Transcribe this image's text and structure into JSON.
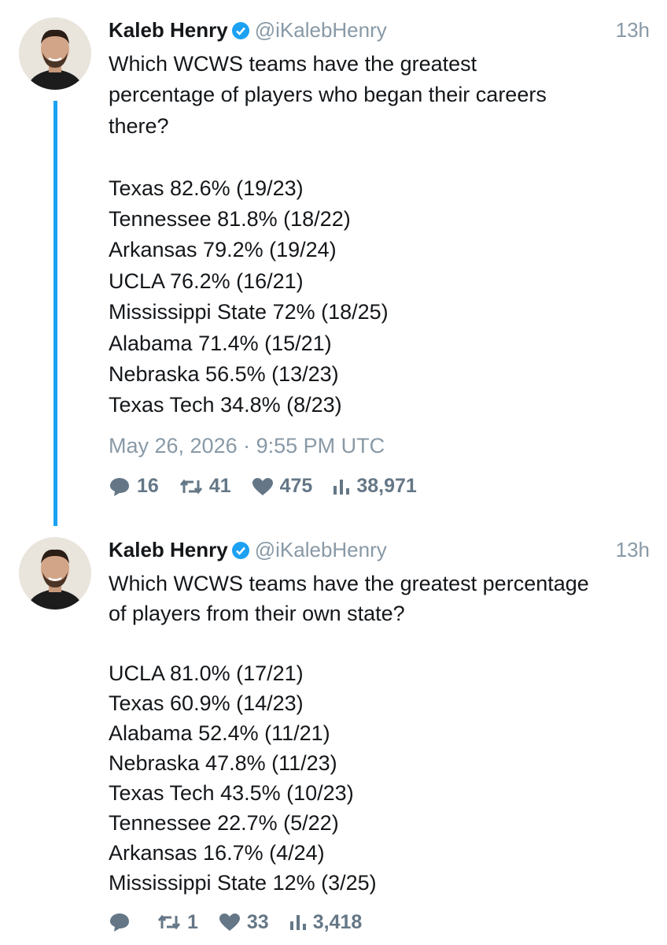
{
  "tweets": [
    {
      "name": "Kaleb Henry",
      "handle": "@iKalebHenry",
      "time": "13h",
      "question": [
        "Which WCWS teams have the greatest",
        "percentage of players who began their careers",
        "there?"
      ],
      "list": [
        "Texas 82.6% (19/23)",
        "Tennessee 81.8% (18/22)",
        "Arkansas 79.2% (19/24)",
        "UCLA 76.2% (16/21)",
        "Mississippi State 72% (18/25)",
        "Alabama 71.4% (15/21)",
        "Nebraska 56.5% (13/23)",
        "Texas Tech 34.8% (8/23)"
      ],
      "timestamp": "May 26, 2026 · 9:55 PM UTC",
      "stats": {
        "replies": "16",
        "retweets": "41",
        "likes": "475",
        "views": "38,971"
      }
    },
    {
      "name": "Kaleb Henry",
      "handle": "@iKalebHenry",
      "time": "13h",
      "question": [
        "Which WCWS teams have the greatest percentage",
        "of players from their own state?"
      ],
      "list": [
        "UCLA 81.0% (17/21)",
        "Texas 60.9% (14/23)",
        "Alabama 52.4% (11/21)",
        "Nebraska 47.8% (11/23)",
        "Texas Tech 43.5% (10/23)",
        "Tennessee 22.7% (5/22)",
        "Arkansas 16.7% (4/24)",
        "Mississippi State 12% (3/25)"
      ],
      "stats": {
        "retweets": "1",
        "likes": "33",
        "views": "3,418"
      }
    }
  ]
}
